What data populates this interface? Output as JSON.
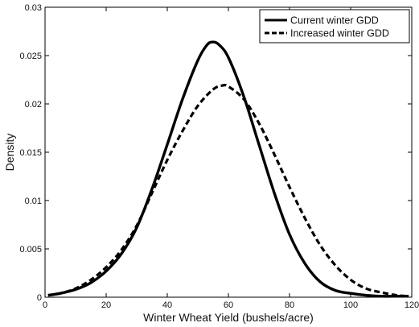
{
  "chart_data": {
    "type": "line",
    "title": "",
    "xlabel": "Winter Wheat Yield (bushels/acre)",
    "ylabel": "Density",
    "xlim": [
      0,
      120
    ],
    "ylim": [
      0,
      0.03
    ],
    "x_ticks": [
      {
        "value": 0,
        "label": "0"
      },
      {
        "value": 20,
        "label": "20"
      },
      {
        "value": 40,
        "label": "40"
      },
      {
        "value": 60,
        "label": "60"
      },
      {
        "value": 80,
        "label": "80"
      },
      {
        "value": 100,
        "label": "100"
      },
      {
        "value": 120,
        "label": "120"
      }
    ],
    "y_ticks": [
      {
        "value": 0,
        "label": "0"
      },
      {
        "value": 0.005,
        "label": "0.005"
      },
      {
        "value": 0.01,
        "label": "0.01"
      },
      {
        "value": 0.015,
        "label": "0.015"
      },
      {
        "value": 0.02,
        "label": "0.02"
      },
      {
        "value": 0.025,
        "label": "0.025"
      },
      {
        "value": 0.03,
        "label": "0.03"
      }
    ],
    "grid": false,
    "legend_position": "top-right",
    "series": [
      {
        "name": "Current winter GDD",
        "style": "solid",
        "color": "#000000",
        "x": [
          1,
          5,
          10,
          15,
          20,
          25,
          30,
          35,
          40,
          45,
          50,
          53,
          55,
          57,
          60,
          65,
          70,
          75,
          80,
          85,
          90,
          95,
          100,
          105,
          110,
          115,
          119
        ],
        "y": [
          0.0002,
          0.0004,
          0.0008,
          0.0015,
          0.0027,
          0.0045,
          0.0072,
          0.0112,
          0.0158,
          0.0205,
          0.0245,
          0.0261,
          0.0264,
          0.0261,
          0.0248,
          0.0208,
          0.0158,
          0.0108,
          0.0065,
          0.0035,
          0.0016,
          0.0007,
          0.0004,
          0.0002,
          0.0001,
          0.0001,
          0.0001
        ]
      },
      {
        "name": "Increased winter GDD",
        "style": "dashed",
        "color": "#000000",
        "x": [
          1,
          5,
          10,
          15,
          20,
          25,
          30,
          35,
          40,
          45,
          50,
          55,
          58,
          60,
          65,
          70,
          75,
          80,
          85,
          90,
          95,
          100,
          105,
          110,
          115,
          119
        ],
        "y": [
          0.0002,
          0.0004,
          0.0009,
          0.0018,
          0.0031,
          0.0049,
          0.0074,
          0.0108,
          0.0142,
          0.0172,
          0.0198,
          0.0215,
          0.0219,
          0.0218,
          0.0205,
          0.018,
          0.0148,
          0.0114,
          0.0082,
          0.0054,
          0.0033,
          0.0018,
          0.0009,
          0.0005,
          0.0002,
          0.0001
        ]
      }
    ]
  }
}
